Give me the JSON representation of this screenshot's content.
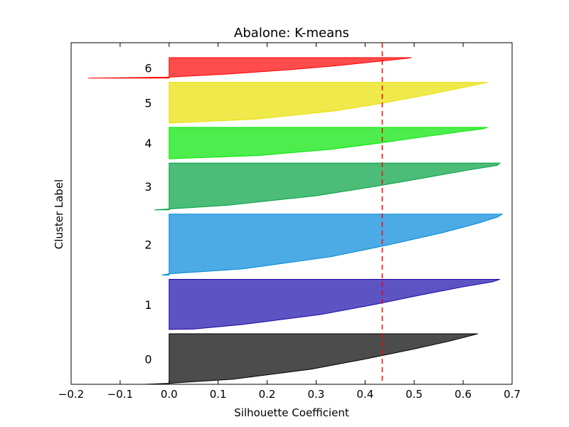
{
  "chart_data": {
    "type": "area",
    "title": "Abalone: K-means",
    "xlabel": "Silhouette Coefficient",
    "ylabel": "Cluster Label",
    "xlim": [
      -0.2,
      0.7
    ],
    "xticks": [
      -0.2,
      -0.1,
      0.0,
      0.1,
      0.2,
      0.3,
      0.4,
      0.5,
      0.6,
      0.7
    ],
    "xtick_labels": [
      "−0.2",
      "−0.1",
      "0.0",
      "0.1",
      "0.2",
      "0.3",
      "0.4",
      "0.5",
      "0.6",
      "0.7"
    ],
    "grid": false,
    "average_silhouette": 0.435,
    "average_line_color": "#ff0000",
    "clusters": [
      {
        "label": "0",
        "color": "#000000",
        "min": -0.05,
        "max": 0.63,
        "size_fraction": 0.18,
        "profile": [
          [
            0.0,
            -0.05
          ],
          [
            0.02,
            0.0
          ],
          [
            0.1,
            0.13
          ],
          [
            0.3,
            0.29
          ],
          [
            0.5,
            0.4
          ],
          [
            0.7,
            0.5
          ],
          [
            0.85,
            0.57
          ],
          [
            0.95,
            0.61
          ],
          [
            1.0,
            0.63
          ]
        ]
      },
      {
        "label": "1",
        "color": "#1a0aa8",
        "min": 0.0,
        "max": 0.675,
        "size_fraction": 0.179,
        "profile": [
          [
            0.0,
            0.0
          ],
          [
            0.01,
            0.05
          ],
          [
            0.1,
            0.15
          ],
          [
            0.3,
            0.31
          ],
          [
            0.5,
            0.42
          ],
          [
            0.7,
            0.52
          ],
          [
            0.85,
            0.6
          ],
          [
            0.95,
            0.66
          ],
          [
            1.0,
            0.675
          ]
        ]
      },
      {
        "label": "2",
        "color": "#0088d8",
        "min": -0.015,
        "max": 0.68,
        "size_fraction": 0.217,
        "profile": [
          [
            0.0,
            -0.015
          ],
          [
            0.02,
            0.0
          ],
          [
            0.1,
            0.15
          ],
          [
            0.3,
            0.33
          ],
          [
            0.5,
            0.45
          ],
          [
            0.7,
            0.56
          ],
          [
            0.85,
            0.63
          ],
          [
            0.95,
            0.67
          ],
          [
            1.0,
            0.68
          ]
        ]
      },
      {
        "label": "3",
        "color": "#00a040",
        "min": -0.03,
        "max": 0.675,
        "size_fraction": 0.167,
        "profile": [
          [
            0.0,
            -0.03
          ],
          [
            0.02,
            0.0
          ],
          [
            0.1,
            0.12
          ],
          [
            0.3,
            0.3
          ],
          [
            0.5,
            0.42
          ],
          [
            0.7,
            0.53
          ],
          [
            0.85,
            0.61
          ],
          [
            0.95,
            0.67
          ],
          [
            1.0,
            0.675
          ]
        ]
      },
      {
        "label": "4",
        "color": "#00e600",
        "min": 0.0,
        "max": 0.65,
        "size_fraction": 0.112,
        "profile": [
          [
            0.0,
            0.0
          ],
          [
            0.1,
            0.18
          ],
          [
            0.3,
            0.33
          ],
          [
            0.5,
            0.43
          ],
          [
            0.7,
            0.52
          ],
          [
            0.85,
            0.59
          ],
          [
            0.95,
            0.64
          ],
          [
            1.0,
            0.65
          ]
        ]
      },
      {
        "label": "5",
        "color": "#e8e000",
        "min": 0.0,
        "max": 0.65,
        "size_fraction": 0.145,
        "profile": [
          [
            0.0,
            0.0
          ],
          [
            0.1,
            0.18
          ],
          [
            0.3,
            0.34
          ],
          [
            0.5,
            0.44
          ],
          [
            0.7,
            0.53
          ],
          [
            0.85,
            0.59
          ],
          [
            0.95,
            0.63
          ],
          [
            1.0,
            0.65
          ]
        ]
      },
      {
        "label": "6",
        "color": "#ff0000",
        "min": -0.165,
        "max": 0.495,
        "size_fraction": 0.073,
        "profile": [
          [
            0.0,
            -0.165
          ],
          [
            0.05,
            0.0
          ],
          [
            0.2,
            0.12
          ],
          [
            0.4,
            0.24
          ],
          [
            0.6,
            0.34
          ],
          [
            0.8,
            0.42
          ],
          [
            0.95,
            0.48
          ],
          [
            1.0,
            0.495
          ]
        ]
      }
    ]
  }
}
